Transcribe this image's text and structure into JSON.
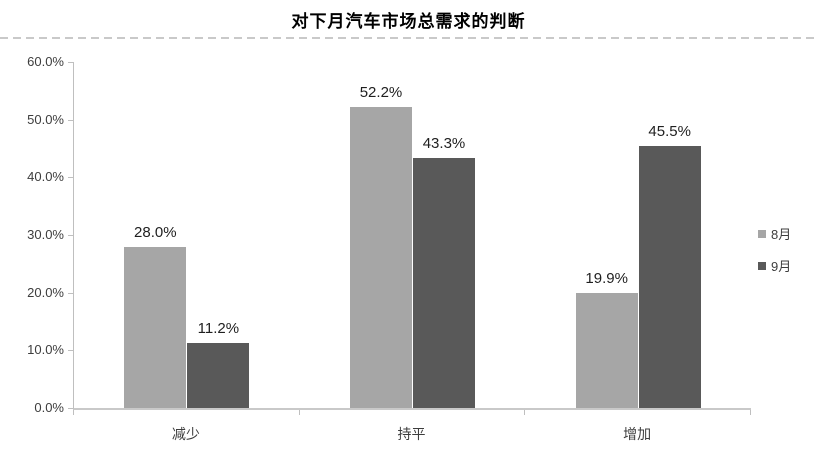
{
  "chart_data": {
    "type": "bar",
    "title": "对下月汽车市场总需求的判断",
    "categories": [
      "减少",
      "持平",
      "增加"
    ],
    "series": [
      {
        "name": "8月",
        "color": "#a6a6a6",
        "values": [
          28.0,
          52.2,
          19.9
        ]
      },
      {
        "name": "9月",
        "color": "#595959",
        "values": [
          11.2,
          43.3,
          45.5
        ]
      }
    ],
    "value_labels": [
      [
        "28.0%",
        "52.2%",
        "19.9%"
      ],
      [
        "11.2%",
        "43.3%",
        "45.5%"
      ]
    ],
    "ylim": [
      0,
      60
    ],
    "ytick_values": [
      0,
      10,
      20,
      30,
      40,
      50,
      60
    ],
    "ytick_labels": [
      "0.0%",
      "10.0%",
      "20.0%",
      "30.0%",
      "40.0%",
      "50.0%",
      "60.0%"
    ],
    "xlabel": "",
    "ylabel": "",
    "grid": false,
    "legend_position": "right",
    "colors": {
      "axis_line": "#bfbfbf",
      "baseline": "#c9c9c9",
      "divider": "#c9c9c9",
      "title_text": "#000000",
      "label_text": "#1f1f1f",
      "tick_text": "#3d3d3d"
    }
  }
}
